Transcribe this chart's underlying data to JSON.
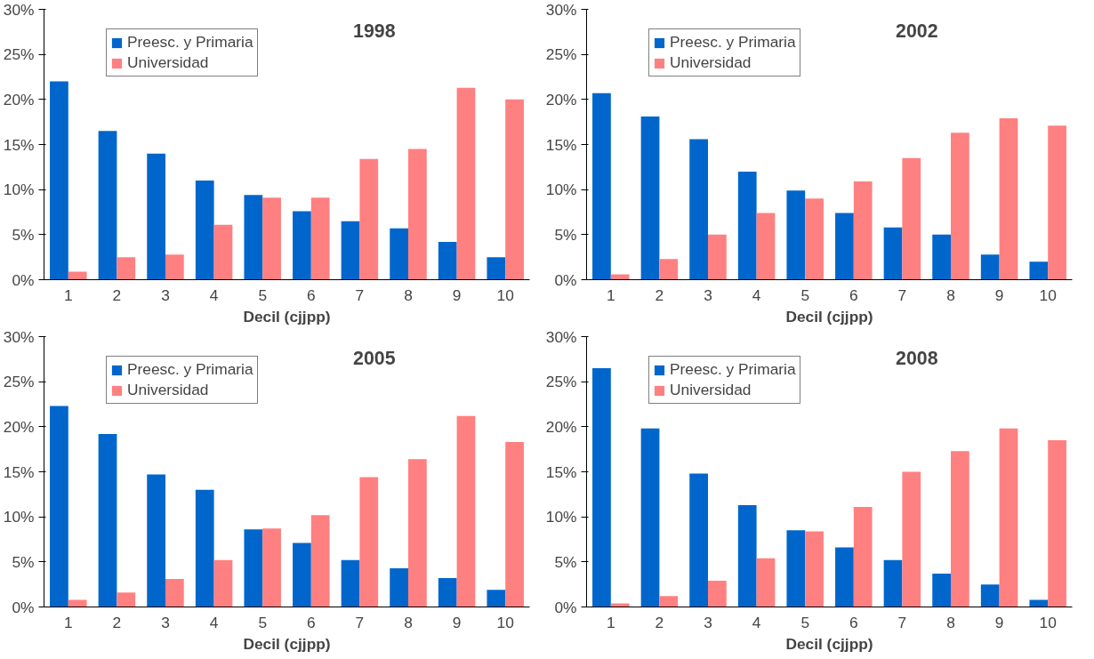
{
  "chart_data": [
    {
      "type": "bar",
      "title": "1998",
      "xlabel": "Decil (cjjpp)",
      "categories": [
        "1",
        "2",
        "3",
        "4",
        "5",
        "6",
        "7",
        "8",
        "9",
        "10"
      ],
      "series": [
        {
          "name": "Preesc. y Primaria",
          "color": "#0066cc",
          "values": [
            22,
            16.5,
            14,
            11,
            9.4,
            7.6,
            6.5,
            5.7,
            4.2,
            2.5
          ]
        },
        {
          "name": "Universidad",
          "color": "#ff8080",
          "values": [
            0.9,
            2.5,
            2.8,
            6.1,
            9.1,
            9.1,
            13.4,
            14.5,
            21.3,
            20
          ]
        }
      ],
      "ylim": [
        0,
        30
      ],
      "yticks": [
        {
          "value": 0,
          "label": "0%"
        },
        {
          "value": 5,
          "label": "5%"
        },
        {
          "value": 10,
          "label": "10%"
        },
        {
          "value": 15,
          "label": "15%"
        },
        {
          "value": 20,
          "label": "20%"
        },
        {
          "value": 25,
          "label": "25%"
        },
        {
          "value": 30,
          "label": "30%"
        }
      ],
      "grid": false,
      "legend": "top left"
    },
    {
      "type": "bar",
      "title": "2002",
      "xlabel": "Decil (cjjpp)",
      "categories": [
        "1",
        "2",
        "3",
        "4",
        "5",
        "6",
        "7",
        "8",
        "9",
        "10"
      ],
      "series": [
        {
          "name": "Preesc. y Primaria",
          "color": "#0066cc",
          "values": [
            20.7,
            18.1,
            15.6,
            12,
            9.9,
            7.4,
            5.8,
            5,
            2.8,
            2
          ]
        },
        {
          "name": "Universidad",
          "color": "#ff8080",
          "values": [
            0.6,
            2.3,
            5,
            7.4,
            9,
            10.9,
            13.5,
            16.3,
            17.9,
            17.1
          ]
        }
      ],
      "ylim": [
        0,
        30
      ],
      "yticks": [
        {
          "value": 0,
          "label": "0%"
        },
        {
          "value": 5,
          "label": "5%"
        },
        {
          "value": 10,
          "label": "10%"
        },
        {
          "value": 15,
          "label": "15%"
        },
        {
          "value": 20,
          "label": "20%"
        },
        {
          "value": 25,
          "label": "25%"
        },
        {
          "value": 30,
          "label": "30%"
        }
      ],
      "grid": false,
      "legend": "top left"
    },
    {
      "type": "bar",
      "title": "2005",
      "xlabel": "Decil (cjjpp)",
      "categories": [
        "1",
        "2",
        "3",
        "4",
        "5",
        "6",
        "7",
        "8",
        "9",
        "10"
      ],
      "series": [
        {
          "name": "Preesc. y Primaria",
          "color": "#0066cc",
          "values": [
            22.3,
            19.2,
            14.7,
            13,
            8.6,
            7.1,
            5.2,
            4.3,
            3.2,
            1.9
          ]
        },
        {
          "name": "Universidad",
          "color": "#ff8080",
          "values": [
            0.8,
            1.6,
            3.1,
            5.2,
            8.7,
            10.2,
            14.4,
            16.4,
            21.2,
            18.3
          ]
        }
      ],
      "ylim": [
        0,
        30
      ],
      "yticks": [
        {
          "value": 0,
          "label": "0%"
        },
        {
          "value": 5,
          "label": "5%"
        },
        {
          "value": 10,
          "label": "10%"
        },
        {
          "value": 15,
          "label": "15%"
        },
        {
          "value": 20,
          "label": "20%"
        },
        {
          "value": 25,
          "label": "25%"
        },
        {
          "value": 30,
          "label": "30%"
        }
      ],
      "grid": false,
      "legend": "top left"
    },
    {
      "type": "bar",
      "title": "2008",
      "xlabel": "Decil (cjjpp)",
      "categories": [
        "1",
        "2",
        "3",
        "4",
        "5",
        "6",
        "7",
        "8",
        "9",
        "10"
      ],
      "series": [
        {
          "name": "Preesc. y Primaria",
          "color": "#0066cc",
          "values": [
            26.5,
            19.8,
            14.8,
            11.3,
            8.5,
            6.6,
            5.2,
            3.7,
            2.5,
            0.8
          ]
        },
        {
          "name": "Universidad",
          "color": "#ff8080",
          "values": [
            0.4,
            1.2,
            2.9,
            5.4,
            8.4,
            11.1,
            15,
            17.3,
            19.8,
            18.5
          ]
        }
      ],
      "ylim": [
        0,
        30
      ],
      "yticks": [
        {
          "value": 0,
          "label": "0%"
        },
        {
          "value": 5,
          "label": "5%"
        },
        {
          "value": 10,
          "label": "10%"
        },
        {
          "value": 15,
          "label": "15%"
        },
        {
          "value": 20,
          "label": "20%"
        },
        {
          "value": 25,
          "label": "25%"
        },
        {
          "value": 30,
          "label": "30%"
        }
      ],
      "grid": false,
      "legend": "top left"
    }
  ]
}
